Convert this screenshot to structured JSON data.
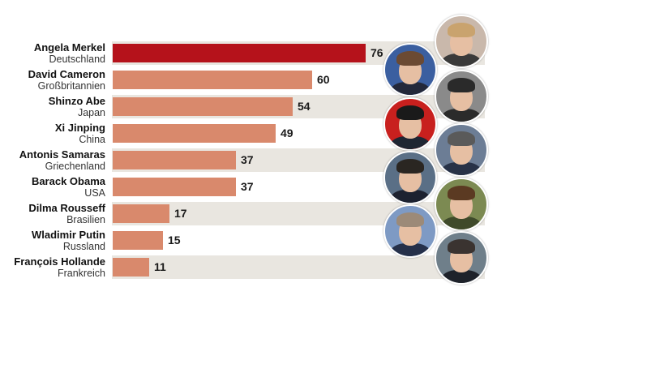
{
  "chart_data": {
    "type": "bar",
    "orientation": "horizontal",
    "categories": [
      {
        "name": "Angela Merkel",
        "country": "Deutschland"
      },
      {
        "name": "David Cameron",
        "country": "Großbritannien"
      },
      {
        "name": "Shinzo Abe",
        "country": "Japan"
      },
      {
        "name": "Xi Jinping",
        "country": "China"
      },
      {
        "name": "Antonis Samaras",
        "country": "Griechenland"
      },
      {
        "name": "Barack Obama",
        "country": "USA"
      },
      {
        "name": "Dilma Rousseff",
        "country": "Brasilien"
      },
      {
        "name": "Wladimir Putin",
        "country": "Russland"
      },
      {
        "name": "François Hollande",
        "country": "Frankreich"
      }
    ],
    "values": [
      76,
      60,
      54,
      49,
      37,
      37,
      17,
      15,
      11
    ],
    "highlight_index": 0,
    "xlim": [
      0,
      100
    ],
    "data_labels": true,
    "grid": false,
    "title": "",
    "xlabel": "",
    "ylabel": ""
  },
  "colors": {
    "highlight_bar": "#b5121b",
    "bar": "#d9896c",
    "row_alt": "#e9e6e0"
  },
  "portraits": [
    {
      "icon": "portrait-merkel-icon",
      "bg": "#c9b8ab",
      "hair": "#c9a36e",
      "suit": "#3a3a3a"
    },
    {
      "icon": "portrait-cameron-icon",
      "bg": "#3b5fa0",
      "hair": "#6b4a33",
      "suit": "#23283a"
    },
    {
      "icon": "portrait-abe-icon",
      "bg": "#8a8a8a",
      "hair": "#2a2a2a",
      "suit": "#2b2b2b"
    },
    {
      "icon": "portrait-xi-icon",
      "bg": "#c8201e",
      "hair": "#1a1a1a",
      "suit": "#1f2633"
    },
    {
      "icon": "portrait-samaras-icon",
      "bg": "#6c7d95",
      "hair": "#5a5a5a",
      "suit": "#283247"
    },
    {
      "icon": "portrait-obama-icon",
      "bg": "#5a6f86",
      "hair": "#2a2622",
      "suit": "#1d2230"
    },
    {
      "icon": "portrait-rousseff-icon",
      "bg": "#7c8a52",
      "hair": "#5b3a22",
      "suit": "#3f4a2a"
    },
    {
      "icon": "portrait-putin-icon",
      "bg": "#7e9ac4",
      "hair": "#9c8a78",
      "suit": "#25304a"
    },
    {
      "icon": "portrait-hollande-icon",
      "bg": "#6f7f8a",
      "hair": "#3a3330",
      "suit": "#1e222a"
    }
  ]
}
